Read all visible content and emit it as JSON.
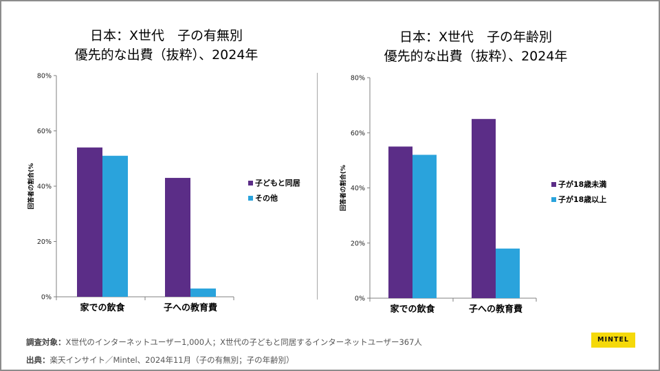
{
  "chart_data": [
    {
      "type": "bar",
      "title_lines": [
        "日本：X世代　子の有無別",
        "優先的な出費（抜粋）、2024年"
      ],
      "categories": [
        "家での飲食",
        "子への教育費"
      ],
      "series": [
        {
          "name": "子どもと同居",
          "color": "#5b2d87",
          "values": [
            54,
            43
          ]
        },
        {
          "name": "その他",
          "color": "#2aa3dc",
          "values": [
            51,
            3
          ]
        }
      ],
      "ylabel": "回答者の割合(%",
      "ylim": [
        0,
        80
      ],
      "yticks": [
        "0%",
        "20%",
        "40%",
        "60%",
        "80%"
      ],
      "legend_position": "right"
    },
    {
      "type": "bar",
      "title_lines": [
        "日本：X世代　子の年齢別",
        "優先的な出費（抜粋）、2024年"
      ],
      "categories": [
        "家での飲食",
        "子への教育費"
      ],
      "series": [
        {
          "name": "子が18歳未満",
          "color": "#5b2d87",
          "values": [
            55,
            65
          ]
        },
        {
          "name": "子が18歳以上",
          "color": "#2aa3dc",
          "values": [
            52,
            18
          ]
        }
      ],
      "ylabel": "回答者の割合(%",
      "ylim": [
        0,
        80
      ],
      "yticks": [
        "0%",
        "20%",
        "40%",
        "60%",
        "80%"
      ],
      "legend_position": "right"
    }
  ],
  "footer": {
    "sample_label": "調査対象：",
    "sample_text": "X世代のインターネットユーザー1,000人；X世代の子どもと同居するインターネットユーザー367人",
    "source_label": "出典：",
    "source_text": "楽天インサイト／Mintel、2024年11月（子の有無別；子の年齢別）"
  },
  "logo": {
    "text": "MINTEL",
    "color": "#f5d90a"
  }
}
